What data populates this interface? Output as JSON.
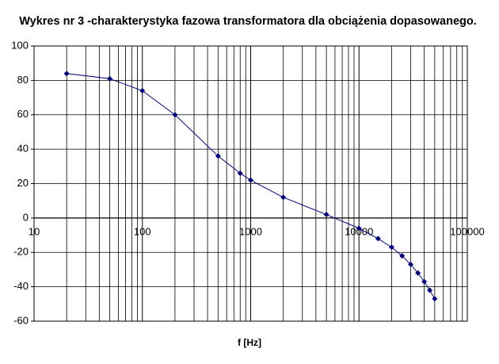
{
  "chart_data": {
    "type": "line",
    "title": "Wykres nr 3 -charakterystyka fazowa transformatora dla obciążenia dopasowanego.",
    "xlabel": "f [Hz]",
    "x": [
      20,
      50,
      100,
      200,
      500,
      800,
      1000,
      2000,
      5000,
      10000,
      15000,
      20000,
      25000,
      30000,
      35000,
      40000,
      45000,
      50000
    ],
    "series": [
      {
        "color": "#000080",
        "values": [
          84,
          81,
          74,
          60,
          36,
          26,
          22,
          12,
          2,
          -6,
          -12,
          -17,
          -22,
          -27,
          -32,
          -37,
          -42,
          -47
        ]
      }
    ],
    "xscale": "log",
    "xlim": [
      10,
      100000
    ],
    "xticks": [
      10,
      100,
      1000,
      10000,
      100000
    ],
    "ylim": [
      -60,
      100
    ],
    "yticks": [
      -60,
      -40,
      -20,
      0,
      20,
      40,
      60,
      80,
      100
    ],
    "grid": true
  }
}
